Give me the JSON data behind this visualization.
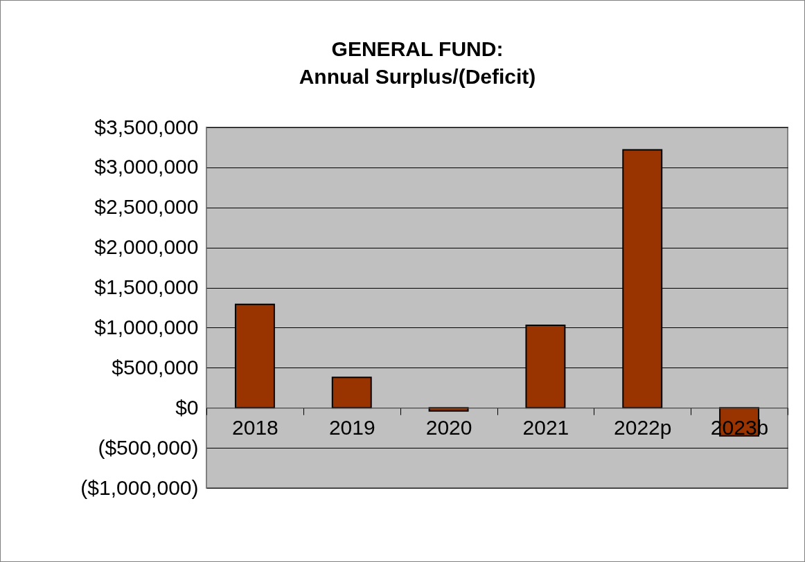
{
  "chart_data": {
    "type": "bar",
    "title": "GENERAL FUND:\nAnnual Surplus/(Deficit)",
    "categories": [
      "2018",
      "2019",
      "2020",
      "2021",
      "2022p",
      "2023b"
    ],
    "values": [
      1290000,
      380000,
      -40000,
      1030000,
      3220000,
      -350000
    ],
    "color": "#993300",
    "ylim": [
      -1000000,
      3500000
    ],
    "yticks": [
      {
        "value": -1000000,
        "label": "($1,000,000)"
      },
      {
        "value": -500000,
        "label": "($500,000)"
      },
      {
        "value": 0,
        "label": "$0"
      },
      {
        "value": 500000,
        "label": "$500,000"
      },
      {
        "value": 1000000,
        "label": "$1,000,000"
      },
      {
        "value": 1500000,
        "label": "$1,500,000"
      },
      {
        "value": 2000000,
        "label": "$2,000,000"
      },
      {
        "value": 2500000,
        "label": "$2,500,000"
      },
      {
        "value": 3000000,
        "label": "$3,000,000"
      },
      {
        "value": 3500000,
        "label": "$3,500,000"
      }
    ],
    "grid": true
  }
}
